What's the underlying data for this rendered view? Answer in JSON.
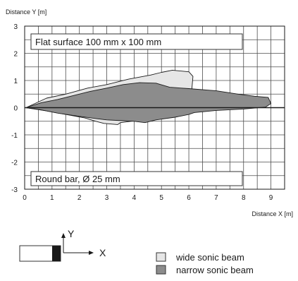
{
  "chart_data": {
    "type": "area",
    "xlabel": "Distance X [m]",
    "ylabel": "Distance Y [m]",
    "xlim": [
      0,
      9.5
    ],
    "ylim": [
      -3,
      3
    ],
    "x_ticks": [
      "0",
      "1",
      "2",
      "3",
      "4",
      "5",
      "6",
      "7",
      "8",
      "9"
    ],
    "y_ticks": [
      "3",
      "2",
      "1",
      "0",
      "-1",
      "-2",
      "-3"
    ],
    "grid": true,
    "annotations": {
      "top": "Flat surface 100 mm x 100 mm",
      "bottom": "Round bar, Ø 25 mm"
    },
    "coordinate_labels": {
      "x": "X",
      "y": "Y"
    },
    "series": [
      {
        "name": "wide sonic beam",
        "color": "#e6e6e6",
        "points": [
          [
            0.05,
            0
          ],
          [
            0.8,
            0.35
          ],
          [
            1.5,
            0.5
          ],
          [
            2.3,
            0.72
          ],
          [
            3.0,
            0.85
          ],
          [
            3.8,
            1.05
          ],
          [
            4.6,
            1.2
          ],
          [
            5.0,
            1.3
          ],
          [
            5.4,
            1.38
          ],
          [
            6.0,
            1.32
          ],
          [
            6.15,
            1.15
          ],
          [
            6.1,
            0.55
          ],
          [
            6.0,
            0.1
          ],
          [
            5.3,
            -0.2
          ],
          [
            4.6,
            -0.4
          ],
          [
            4.3,
            -0.45
          ],
          [
            3.5,
            -0.55
          ],
          [
            3.4,
            -0.62
          ],
          [
            2.9,
            -0.58
          ],
          [
            2.6,
            -0.5
          ],
          [
            2.2,
            -0.38
          ],
          [
            1.5,
            -0.25
          ],
          [
            0.8,
            -0.12
          ],
          [
            0.05,
            0
          ]
        ]
      },
      {
        "name": "narrow sonic beam",
        "color": "#8c8c8c",
        "points": [
          [
            0.05,
            0
          ],
          [
            0.6,
            0.18
          ],
          [
            1.2,
            0.3
          ],
          [
            1.8,
            0.45
          ],
          [
            2.4,
            0.6
          ],
          [
            3.0,
            0.72
          ],
          [
            3.6,
            0.85
          ],
          [
            4.2,
            0.92
          ],
          [
            4.8,
            0.9
          ],
          [
            5.3,
            0.75
          ],
          [
            6.0,
            0.7
          ],
          [
            7.0,
            0.62
          ],
          [
            7.8,
            0.5
          ],
          [
            8.4,
            0.42
          ],
          [
            8.9,
            0.38
          ],
          [
            9.0,
            0.15
          ],
          [
            8.8,
            0.02
          ],
          [
            8.0,
            -0.05
          ],
          [
            7.0,
            -0.1
          ],
          [
            6.2,
            -0.18
          ],
          [
            6.0,
            -0.25
          ],
          [
            5.5,
            -0.35
          ],
          [
            4.8,
            -0.45
          ],
          [
            4.4,
            -0.55
          ],
          [
            4.0,
            -0.5
          ],
          [
            3.6,
            -0.48
          ],
          [
            3.0,
            -0.45
          ],
          [
            2.6,
            -0.4
          ],
          [
            2.0,
            -0.32
          ],
          [
            1.2,
            -0.2
          ],
          [
            0.6,
            -0.08
          ],
          [
            0.05,
            0
          ]
        ]
      }
    ],
    "legend": [
      {
        "label": "wide sonic beam",
        "color": "#e6e6e6"
      },
      {
        "label": "narrow sonic beam",
        "color": "#8c8c8c"
      }
    ]
  }
}
